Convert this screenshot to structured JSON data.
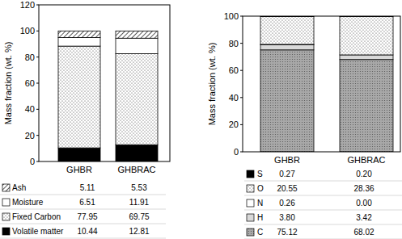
{
  "chart_data": [
    {
      "type": "bar",
      "stacked": true,
      "y_label": "Mass fraction (wt. %)",
      "categories": [
        "GHBR",
        "GHBRAC"
      ],
      "ylim": [
        0,
        120
      ],
      "yticks": [
        0,
        20,
        40,
        60,
        80,
        100,
        120
      ],
      "series": [
        {
          "name": "Volatile matter",
          "color": "#000000",
          "values": [
            10.44,
            12.81
          ],
          "value_labels": [
            "10.44",
            "12.81"
          ]
        },
        {
          "name": "Fixed Carbon",
          "color": "#ffffff",
          "values": [
            77.95,
            69.75
          ],
          "value_labels": [
            "77.95",
            "69.75"
          ]
        },
        {
          "name": "Moisture",
          "color": "#ffffff",
          "values": [
            6.51,
            11.91
          ],
          "value_labels": [
            "6.51",
            "11.91"
          ]
        },
        {
          "name": "Ash",
          "color": "#ffffff",
          "values": [
            5.11,
            5.53
          ],
          "value_labels": [
            "5.11",
            "5.53"
          ]
        }
      ]
    },
    {
      "type": "bar",
      "stacked": true,
      "y_label": "Mass fraction (wt. %)",
      "categories": [
        "GHBR",
        "GHBRAC"
      ],
      "ylim": [
        0,
        100
      ],
      "yticks": [
        0,
        20,
        40,
        60,
        80,
        100
      ],
      "series": [
        {
          "name": "C",
          "color": "#a8a8a8",
          "values": [
            75.12,
            68.02
          ],
          "value_labels": [
            "75.12",
            "68.02"
          ]
        },
        {
          "name": "H",
          "color": "#d9d9d9",
          "values": [
            3.8,
            3.42
          ],
          "value_labels": [
            "3.80",
            "3.42"
          ]
        },
        {
          "name": "N",
          "color": "#ffffff",
          "values": [
            0.26,
            0.0
          ],
          "value_labels": [
            "0.26",
            "0.00"
          ]
        },
        {
          "name": "O",
          "color": "#ffffff",
          "values": [
            20.55,
            28.36
          ],
          "value_labels": [
            "20.55",
            "28.36"
          ]
        },
        {
          "name": "S",
          "color": "#000000",
          "values": [
            0.27,
            0.2
          ],
          "value_labels": [
            "0.27",
            "0.20"
          ]
        }
      ]
    }
  ]
}
